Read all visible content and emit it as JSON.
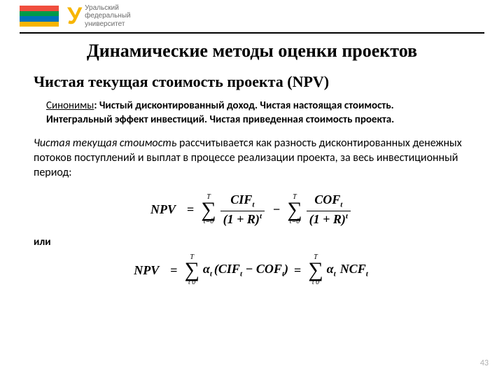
{
  "header": {
    "stripe_colors": [
      "#f04e3e",
      "#009a49",
      "#0072bb",
      "#f7b500"
    ],
    "logo_letter": "У",
    "logo_color": "#f7b500",
    "logo_line1": "Уральский",
    "logo_line2": "федеральный",
    "logo_line3": "университет"
  },
  "title": "Динамические методы оценки проектов",
  "subtitle": "Чистая текущая стоимость проекта (NPV)",
  "synonyms_label": "Синонимы",
  "synonyms_text": ": Чистый дисконтированный доход. Чистая настоящая стоимость. Интегральный эффект инвестиций. Чистая приведенная стоимость проекта.",
  "definition_em": "Чистая текущая стоимость",
  "definition_rest": " рассчитывается как разность дисконтированных денежных потоков поступлений и выплат в процессе реализации проекта, за весь инвестиционный период:",
  "formula1": {
    "lhs": "NPV",
    "sum_upper": "T",
    "sum_lower1": "t=0",
    "num1": "CIF",
    "num1_sub": "t",
    "den1_base": "(1 + R)",
    "den1_sup": "t",
    "num2": "COF",
    "num2_sub": "t",
    "sum_lower2": "t=0"
  },
  "or_label": "или",
  "formula2": {
    "lhs": "NPV",
    "sum_upper": "T",
    "sum_lower": "t  0",
    "alpha": "α",
    "alpha_sub": "t",
    "term1": "CIF",
    "term1_sub": "t",
    "term2": "COF",
    "term2_sub": "t",
    "ncf": "NCF",
    "ncf_sub": "t"
  },
  "page_number": "43"
}
